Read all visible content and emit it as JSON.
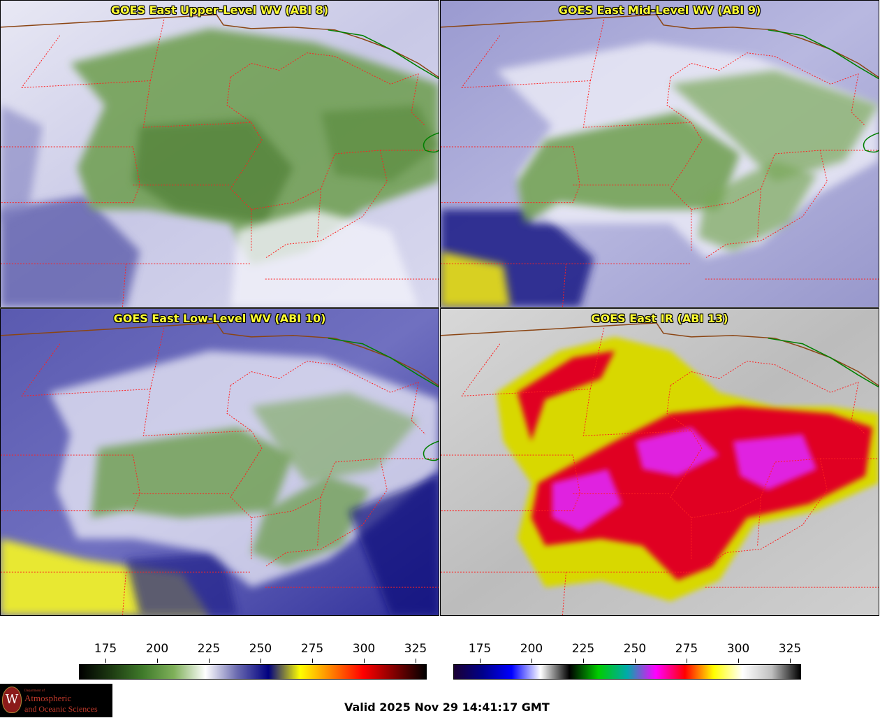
{
  "panels": [
    {
      "title": "GOES East Upper-Level WV (ABI 8)",
      "variant": "upper"
    },
    {
      "title": "GOES East Mid-Level WV (ABI 9)",
      "variant": "mid"
    },
    {
      "title": "GOES East Low-Level WV (ABI 10)",
      "variant": "low"
    },
    {
      "title": "GOES East IR (ABI 13)",
      "variant": "ir"
    }
  ],
  "colorbars": {
    "wv": {
      "ticks": [
        "175",
        "200",
        "225",
        "250",
        "275",
        "300",
        "325"
      ],
      "stops": [
        "#000000",
        "#1d3a12",
        "#3f7a2a",
        "#7fb05a",
        "#ffffff",
        "#6a6ab0",
        "#000080",
        "#ffff00",
        "#ff8000",
        "#ff0000",
        "#800000",
        "#000000"
      ]
    },
    "ir": {
      "ticks": [
        "175",
        "200",
        "225",
        "250",
        "275",
        "300",
        "325"
      ],
      "stops": [
        "#1a0033",
        "#00008b",
        "#0000ff",
        "#ffffff",
        "#000000",
        "#00cc00",
        "#00aaaa",
        "#ff00ff",
        "#ff0000",
        "#ffff00",
        "#ffffff",
        "#c0c0c0",
        "#000000"
      ]
    }
  },
  "logo": {
    "crest_letter": "W",
    "line1": "Department of",
    "line2": "Atmospheric",
    "line3": "and Oceanic Sciences"
  },
  "valid_time": "Valid 2025 Nov 29 14:41:17 GMT",
  "colors": {
    "title_text": "#ffff33",
    "state_borders": "#ff2020",
    "intl_border": "#8b4513",
    "lake_border": "#008000"
  }
}
